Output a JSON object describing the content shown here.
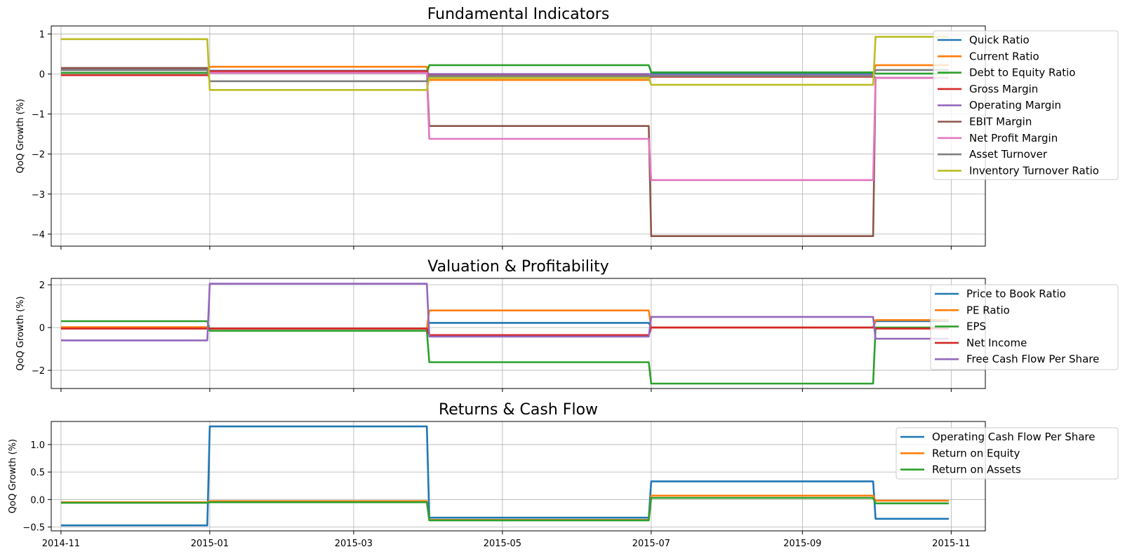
{
  "chart_data": [
    {
      "type": "line",
      "title": "Fundamental Indicators",
      "ylabel": "QoQ Growth (%)",
      "xlabel": "",
      "x": [
        "2014-11-01",
        "2014-12-31",
        "2015-01-01",
        "2015-03-31",
        "2015-04-01",
        "2015-06-30",
        "2015-07-01",
        "2015-09-30",
        "2015-10-01",
        "2015-10-31"
      ],
      "xticks": [
        "2014-11",
        "2015-01",
        "2015-03",
        "2015-05",
        "2015-07",
        "2015-09",
        "2015-11"
      ],
      "xtick_labels_visible": false,
      "ylim": [
        -4.3,
        1.2
      ],
      "yticks": [
        1,
        0,
        -1,
        -2,
        -3,
        -4
      ],
      "ytick_labels": [
        "1",
        "0",
        "−1",
        "−2",
        "−3",
        "−4"
      ],
      "grid": true,
      "legend_position": "upper-right",
      "series": [
        {
          "name": "Quick Ratio",
          "color": "#1f77b4",
          "values": [
            0.1,
            0.1,
            0.08,
            0.08,
            -0.05,
            -0.05,
            0.02,
            0.02,
            0.1,
            0.1
          ]
        },
        {
          "name": "Current Ratio",
          "color": "#ff7f0e",
          "values": [
            0.1,
            0.1,
            0.18,
            0.18,
            -0.15,
            -0.15,
            -0.03,
            -0.03,
            0.22,
            0.22
          ]
        },
        {
          "name": "Debt to Equity Ratio",
          "color": "#2ca02c",
          "values": [
            0.03,
            0.03,
            0.03,
            0.03,
            0.22,
            0.22,
            0.04,
            0.04,
            0.01,
            0.01
          ]
        },
        {
          "name": "Gross Margin",
          "color": "#d62728",
          "values": [
            -0.03,
            -0.03,
            0.07,
            0.07,
            -0.03,
            -0.03,
            -0.07,
            -0.07,
            -0.1,
            -0.1
          ]
        },
        {
          "name": "Operating Margin",
          "color": "#9467bd",
          "values": [
            0.13,
            0.13,
            0.03,
            0.03,
            0.0,
            0.0,
            -0.03,
            -0.03,
            -0.1,
            -0.1
          ]
        },
        {
          "name": "EBIT Margin",
          "color": "#8c564b",
          "values": [
            0.15,
            0.15,
            0.03,
            0.03,
            -1.3,
            -1.3,
            -4.05,
            -4.05,
            -0.1,
            -0.1
          ]
        },
        {
          "name": "Net Profit Margin",
          "color": "#e377c2",
          "values": [
            0.1,
            0.1,
            0.03,
            0.03,
            -1.62,
            -1.62,
            -2.65,
            -2.65,
            -0.1,
            -0.1
          ]
        },
        {
          "name": "Asset Turnover",
          "color": "#7f7f7f",
          "values": [
            0.1,
            0.1,
            -0.18,
            -0.18,
            -0.05,
            -0.05,
            -0.05,
            -0.05,
            0.1,
            0.1
          ]
        },
        {
          "name": "Inventory Turnover Ratio",
          "color": "#bcbd22",
          "values": [
            0.87,
            0.87,
            -0.4,
            -0.4,
            -0.1,
            -0.1,
            -0.27,
            -0.27,
            0.93,
            0.93
          ]
        }
      ]
    },
    {
      "type": "line",
      "title": "Valuation & Profitability",
      "ylabel": "QoQ Growth (%)",
      "xlabel": "",
      "x": [
        "2014-11-01",
        "2014-12-31",
        "2015-01-01",
        "2015-03-31",
        "2015-04-01",
        "2015-06-30",
        "2015-07-01",
        "2015-09-30",
        "2015-10-01",
        "2015-10-31"
      ],
      "xticks": [
        "2014-11",
        "2015-01",
        "2015-03",
        "2015-05",
        "2015-07",
        "2015-09",
        "2015-11"
      ],
      "xtick_labels_visible": false,
      "ylim": [
        -2.85,
        2.3
      ],
      "yticks": [
        2,
        0,
        -2
      ],
      "ytick_labels": [
        "2",
        "0",
        "−2"
      ],
      "grid": true,
      "legend_position": "upper-right",
      "series": [
        {
          "name": "Price to Book Ratio",
          "color": "#1f77b4",
          "values": [
            0.0,
            0.0,
            -0.05,
            -0.05,
            0.22,
            0.22,
            0.0,
            0.0,
            0.3,
            0.3
          ]
        },
        {
          "name": "PE Ratio",
          "color": "#ff7f0e",
          "values": [
            0.02,
            0.02,
            -0.05,
            -0.05,
            0.8,
            0.8,
            0.0,
            0.0,
            0.35,
            0.35
          ]
        },
        {
          "name": "EPS",
          "color": "#2ca02c",
          "values": [
            0.3,
            0.3,
            -0.15,
            -0.15,
            -1.62,
            -1.62,
            -2.62,
            -2.62,
            0.0,
            0.0
          ]
        },
        {
          "name": "Net Income",
          "color": "#d62728",
          "values": [
            -0.05,
            -0.05,
            -0.05,
            -0.05,
            -0.35,
            -0.35,
            0.0,
            0.0,
            -0.05,
            -0.05
          ]
        },
        {
          "name": "Free Cash Flow Per Share",
          "color": "#9467bd",
          "values": [
            -0.6,
            -0.6,
            2.05,
            2.05,
            -0.42,
            -0.42,
            0.5,
            0.5,
            -0.52,
            -0.52
          ]
        }
      ]
    },
    {
      "type": "line",
      "title": "Returns & Cash Flow",
      "ylabel": "QoQ Growth (%)",
      "xlabel": "",
      "x": [
        "2014-11-01",
        "2014-12-31",
        "2015-01-01",
        "2015-03-31",
        "2015-04-01",
        "2015-06-30",
        "2015-07-01",
        "2015-09-30",
        "2015-10-01",
        "2015-10-31"
      ],
      "xticks": [
        "2014-11",
        "2015-01",
        "2015-03",
        "2015-05",
        "2015-07",
        "2015-09",
        "2015-11"
      ],
      "xtick_labels_visible": true,
      "ylim": [
        -0.57,
        1.42
      ],
      "yticks": [
        1.0,
        0.5,
        0.0,
        -0.5
      ],
      "ytick_labels": [
        "1.0",
        "0.5",
        "0.0",
        "−0.5"
      ],
      "grid": true,
      "legend_position": "upper-right",
      "series": [
        {
          "name": "Operating Cash Flow Per Share",
          "color": "#1f77b4",
          "values": [
            -0.47,
            -0.47,
            1.33,
            1.33,
            -0.33,
            -0.33,
            0.33,
            0.33,
            -0.35,
            -0.35
          ]
        },
        {
          "name": "Return on Equity",
          "color": "#ff7f0e",
          "values": [
            -0.05,
            -0.05,
            -0.03,
            -0.03,
            -0.37,
            -0.37,
            0.07,
            0.07,
            -0.02,
            -0.02
          ]
        },
        {
          "name": "Return on Assets",
          "color": "#2ca02c",
          "values": [
            -0.06,
            -0.06,
            -0.05,
            -0.05,
            -0.38,
            -0.38,
            0.03,
            0.03,
            -0.07,
            -0.07
          ]
        }
      ]
    }
  ]
}
